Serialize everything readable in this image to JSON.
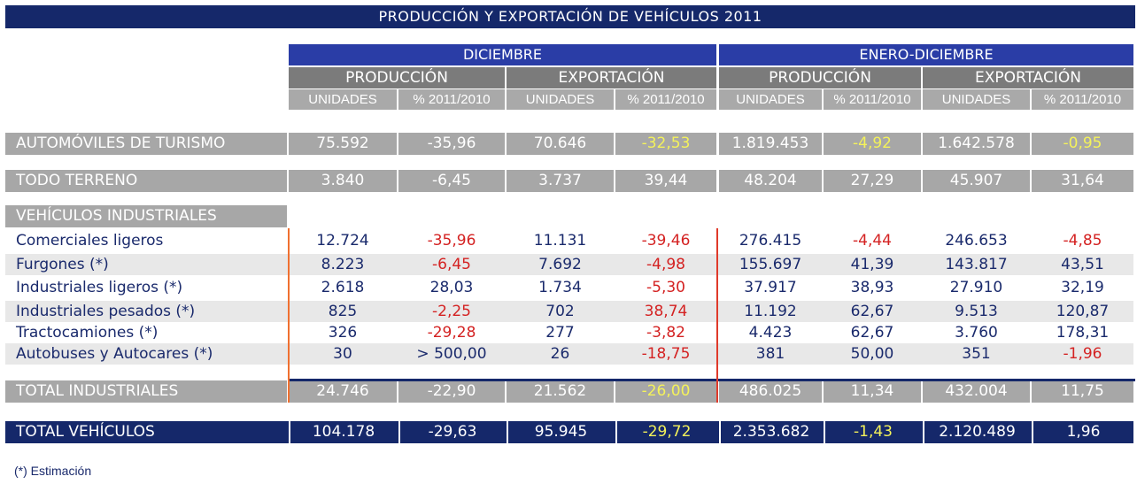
{
  "title": "PRODUCCIÓN Y EXPORTACIÓN DE VEHÍCULOS 2011",
  "periods": [
    "DICIEMBRE",
    "ENERO-DICIEMBRE"
  ],
  "groups": [
    "PRODUCCIÓN",
    "EXPORTACIÓN",
    "PRODUCCIÓN",
    "EXPORTACIÓN"
  ],
  "columns": [
    "UNIDADES",
    "% 2011/2010",
    "UNIDADES",
    "% 2011/2010",
    "UNIDADES",
    "% 2011/2010",
    "UNIDADES",
    "% 2011/2010"
  ],
  "colors": {
    "navy": "#15286a",
    "header_blue": "#2a3da6",
    "gray": "#a7a7a7",
    "negative": "#d42222",
    "highlight": "#f4f25a"
  },
  "rows": [
    {
      "label": "AUTOMÓVILES DE TURISMO",
      "style": "gray",
      "values": [
        {
          "v": "75.592"
        },
        {
          "v": "-35,96"
        },
        {
          "v": "70.646"
        },
        {
          "v": "-32,53",
          "c": "yellow"
        },
        {
          "v": "1.819.453"
        },
        {
          "v": "-4,92",
          "c": "yellow"
        },
        {
          "v": "1.642.578"
        },
        {
          "v": "-0,95",
          "c": "yellow"
        }
      ]
    },
    {
      "label": "TODO TERRENO",
      "style": "gray",
      "values": [
        {
          "v": "3.840"
        },
        {
          "v": "-6,45"
        },
        {
          "v": "3.737"
        },
        {
          "v": "39,44"
        },
        {
          "v": "48.204"
        },
        {
          "v": "27,29"
        },
        {
          "v": "45.907"
        },
        {
          "v": "31,64"
        }
      ]
    },
    {
      "label": "VEHÍCULOS INDUSTRIALES",
      "style": "section",
      "values": []
    },
    {
      "label": "Comerciales ligeros",
      "style": "plain",
      "values": [
        {
          "v": "12.724"
        },
        {
          "v": "-35,96",
          "c": "red"
        },
        {
          "v": "11.131"
        },
        {
          "v": "-39,46",
          "c": "red"
        },
        {
          "v": "276.415"
        },
        {
          "v": "-4,44",
          "c": "red"
        },
        {
          "v": "246.653"
        },
        {
          "v": "-4,85",
          "c": "red"
        }
      ]
    },
    {
      "label": "Furgones (*)",
      "style": "alt",
      "values": [
        {
          "v": "8.223"
        },
        {
          "v": "-6,45",
          "c": "red"
        },
        {
          "v": "7.692"
        },
        {
          "v": "-4,98",
          "c": "red"
        },
        {
          "v": "155.697"
        },
        {
          "v": "41,39"
        },
        {
          "v": "143.817"
        },
        {
          "v": "43,51"
        }
      ]
    },
    {
      "label": "Industriales ligeros (*)",
      "style": "plain",
      "values": [
        {
          "v": "2.618"
        },
        {
          "v": "28,03"
        },
        {
          "v": "1.734"
        },
        {
          "v": "-5,30",
          "c": "red"
        },
        {
          "v": "37.917"
        },
        {
          "v": "38,93"
        },
        {
          "v": "27.910"
        },
        {
          "v": "32,19"
        }
      ]
    },
    {
      "label": "Industriales pesados (*)",
      "style": "alt",
      "values": [
        {
          "v": "825"
        },
        {
          "v": "-2,25",
          "c": "red"
        },
        {
          "v": "702"
        },
        {
          "v": "38,74",
          "c": "red"
        },
        {
          "v": "11.192"
        },
        {
          "v": "62,67"
        },
        {
          "v": "9.513"
        },
        {
          "v": "120,87"
        }
      ]
    },
    {
      "label": "Tractocamiones (*)",
      "style": "plain",
      "values": [
        {
          "v": "326"
        },
        {
          "v": "-29,28",
          "c": "red"
        },
        {
          "v": "277"
        },
        {
          "v": "-3,82",
          "c": "red"
        },
        {
          "v": "4.423"
        },
        {
          "v": "62,67"
        },
        {
          "v": "3.760"
        },
        {
          "v": "178,31"
        }
      ]
    },
    {
      "label": "Autobuses y Autocares (*)",
      "style": "alt",
      "values": [
        {
          "v": "30"
        },
        {
          "v": "> 500,00"
        },
        {
          "v": "26"
        },
        {
          "v": "-18,75",
          "c": "red"
        },
        {
          "v": "381"
        },
        {
          "v": "50,00"
        },
        {
          "v": "351"
        },
        {
          "v": "-1,96",
          "c": "red"
        }
      ]
    },
    {
      "label": "TOTAL INDUSTRIALES",
      "style": "gray",
      "values": [
        {
          "v": "24.746"
        },
        {
          "v": "-22,90"
        },
        {
          "v": "21.562"
        },
        {
          "v": "-26,00",
          "c": "yellow"
        },
        {
          "v": "486.025"
        },
        {
          "v": "11,34"
        },
        {
          "v": "432.004"
        },
        {
          "v": "11,75"
        }
      ]
    },
    {
      "label": "TOTAL VEHÍCULOS",
      "style": "navy",
      "values": [
        {
          "v": "104.178"
        },
        {
          "v": "-29,63"
        },
        {
          "v": "95.945"
        },
        {
          "v": "-29,72",
          "c": "yellow"
        },
        {
          "v": "2.353.682"
        },
        {
          "v": "-1,43",
          "c": "yellow"
        },
        {
          "v": "2.120.489"
        },
        {
          "v": "1,96"
        }
      ]
    }
  ],
  "footnote": "(*) Estimación"
}
